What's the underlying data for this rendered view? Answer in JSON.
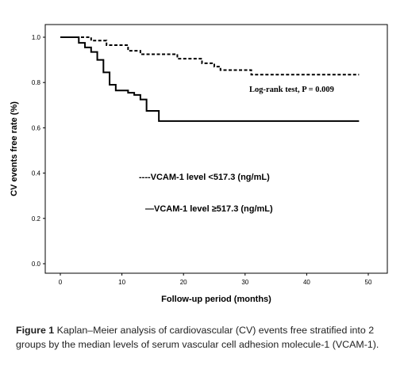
{
  "chart_data": {
    "type": "line",
    "xlabel": "Follow-up period (months)",
    "ylabel": "CV events free rate (%)",
    "xlim": [
      0,
      50
    ],
    "ylim": [
      0.0,
      1.0
    ],
    "x_ticks": [
      "0",
      "10",
      "20",
      "30",
      "40",
      "50"
    ],
    "y_ticks": [
      "0.0",
      "0.2",
      "0.4",
      "0.6",
      "0.8",
      "1.0"
    ],
    "grid": false,
    "annotation": "Log-rank test, P = 0.009",
    "legend": [
      "----VCAM-1 level <517.3 (ng/mL)",
      "—VCAM-1 level ≥517.3 (ng/mL)"
    ],
    "series": [
      {
        "name": "VCAM-1 level <517.3 (ng/mL)",
        "style": "dashed",
        "x": [
          0,
          4,
          5,
          7.5,
          11,
          13,
          19,
          23,
          25,
          26,
          31,
          48.5
        ],
        "y": [
          1.0,
          1.0,
          0.985,
          0.965,
          0.94,
          0.925,
          0.905,
          0.885,
          0.87,
          0.855,
          0.835,
          0.835
        ]
      },
      {
        "name": "VCAM-1 level ≥517.3 (ng/mL)",
        "style": "solid",
        "x": [
          0,
          3,
          4,
          5,
          6,
          7,
          8,
          9,
          11,
          12,
          13,
          14,
          16,
          48.5
        ],
        "y": [
          1.0,
          0.975,
          0.955,
          0.935,
          0.9,
          0.845,
          0.79,
          0.765,
          0.755,
          0.745,
          0.725,
          0.675,
          0.63,
          0.63
        ]
      }
    ]
  },
  "caption": {
    "label": "Figure 1",
    "text": "Kaplan–Meier analysis of cardiovascular (CV) events free stratified into 2 groups by the median levels of serum vascular cell adhesion molecule-1 (VCAM-1)."
  }
}
